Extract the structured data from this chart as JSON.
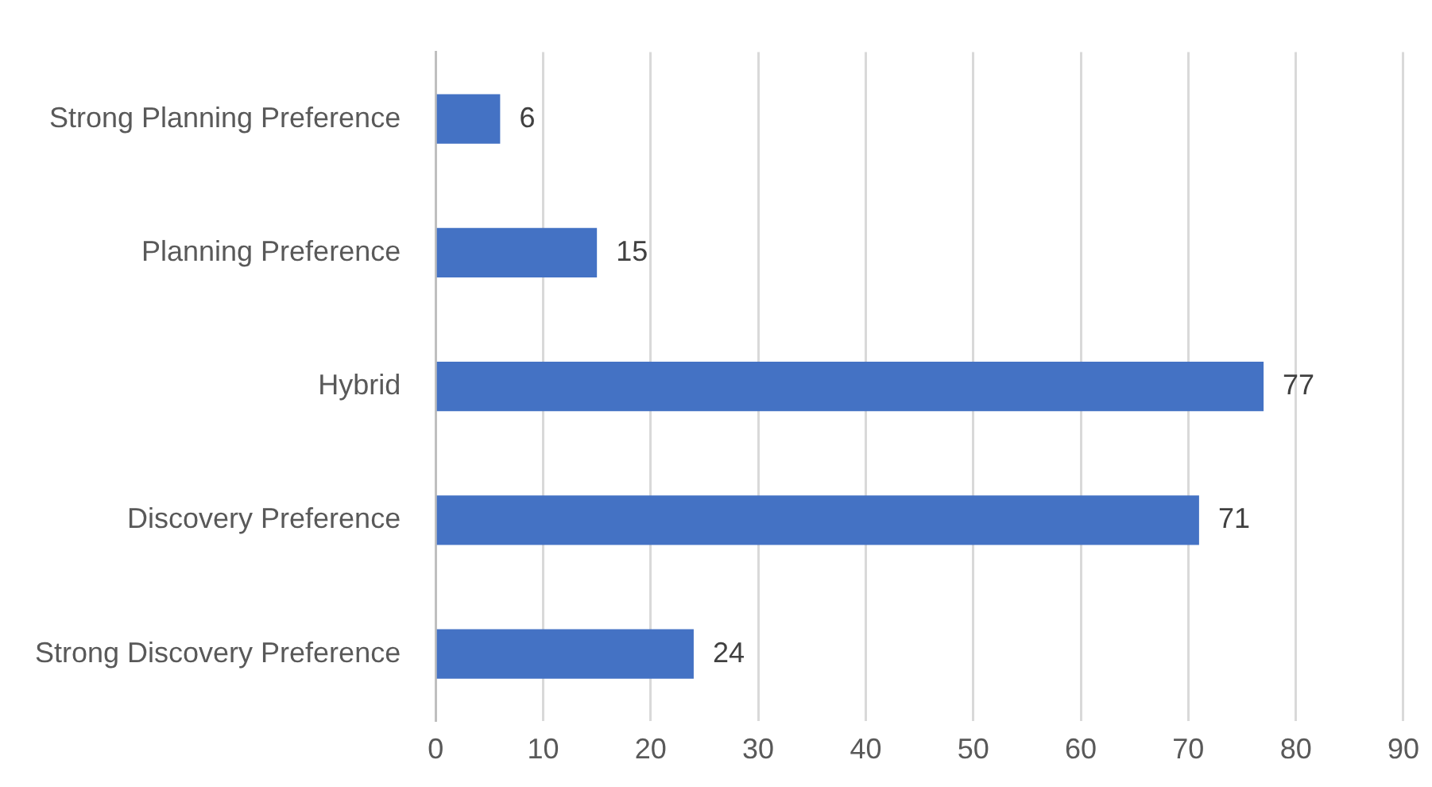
{
  "chart_data": {
    "type": "bar",
    "orientation": "horizontal",
    "categories": [
      "Strong Planning Preference",
      "Planning Preference",
      "Hybrid",
      "Discovery Preference",
      "Strong Discovery Preference"
    ],
    "values": [
      6,
      15,
      77,
      71,
      24
    ],
    "color": "#4472c4",
    "xlim": [
      0,
      90
    ],
    "xticks": [
      0,
      10,
      20,
      30,
      40,
      50,
      60,
      70,
      80,
      90
    ],
    "grid": "x",
    "data_labels": true,
    "legend": false
  }
}
